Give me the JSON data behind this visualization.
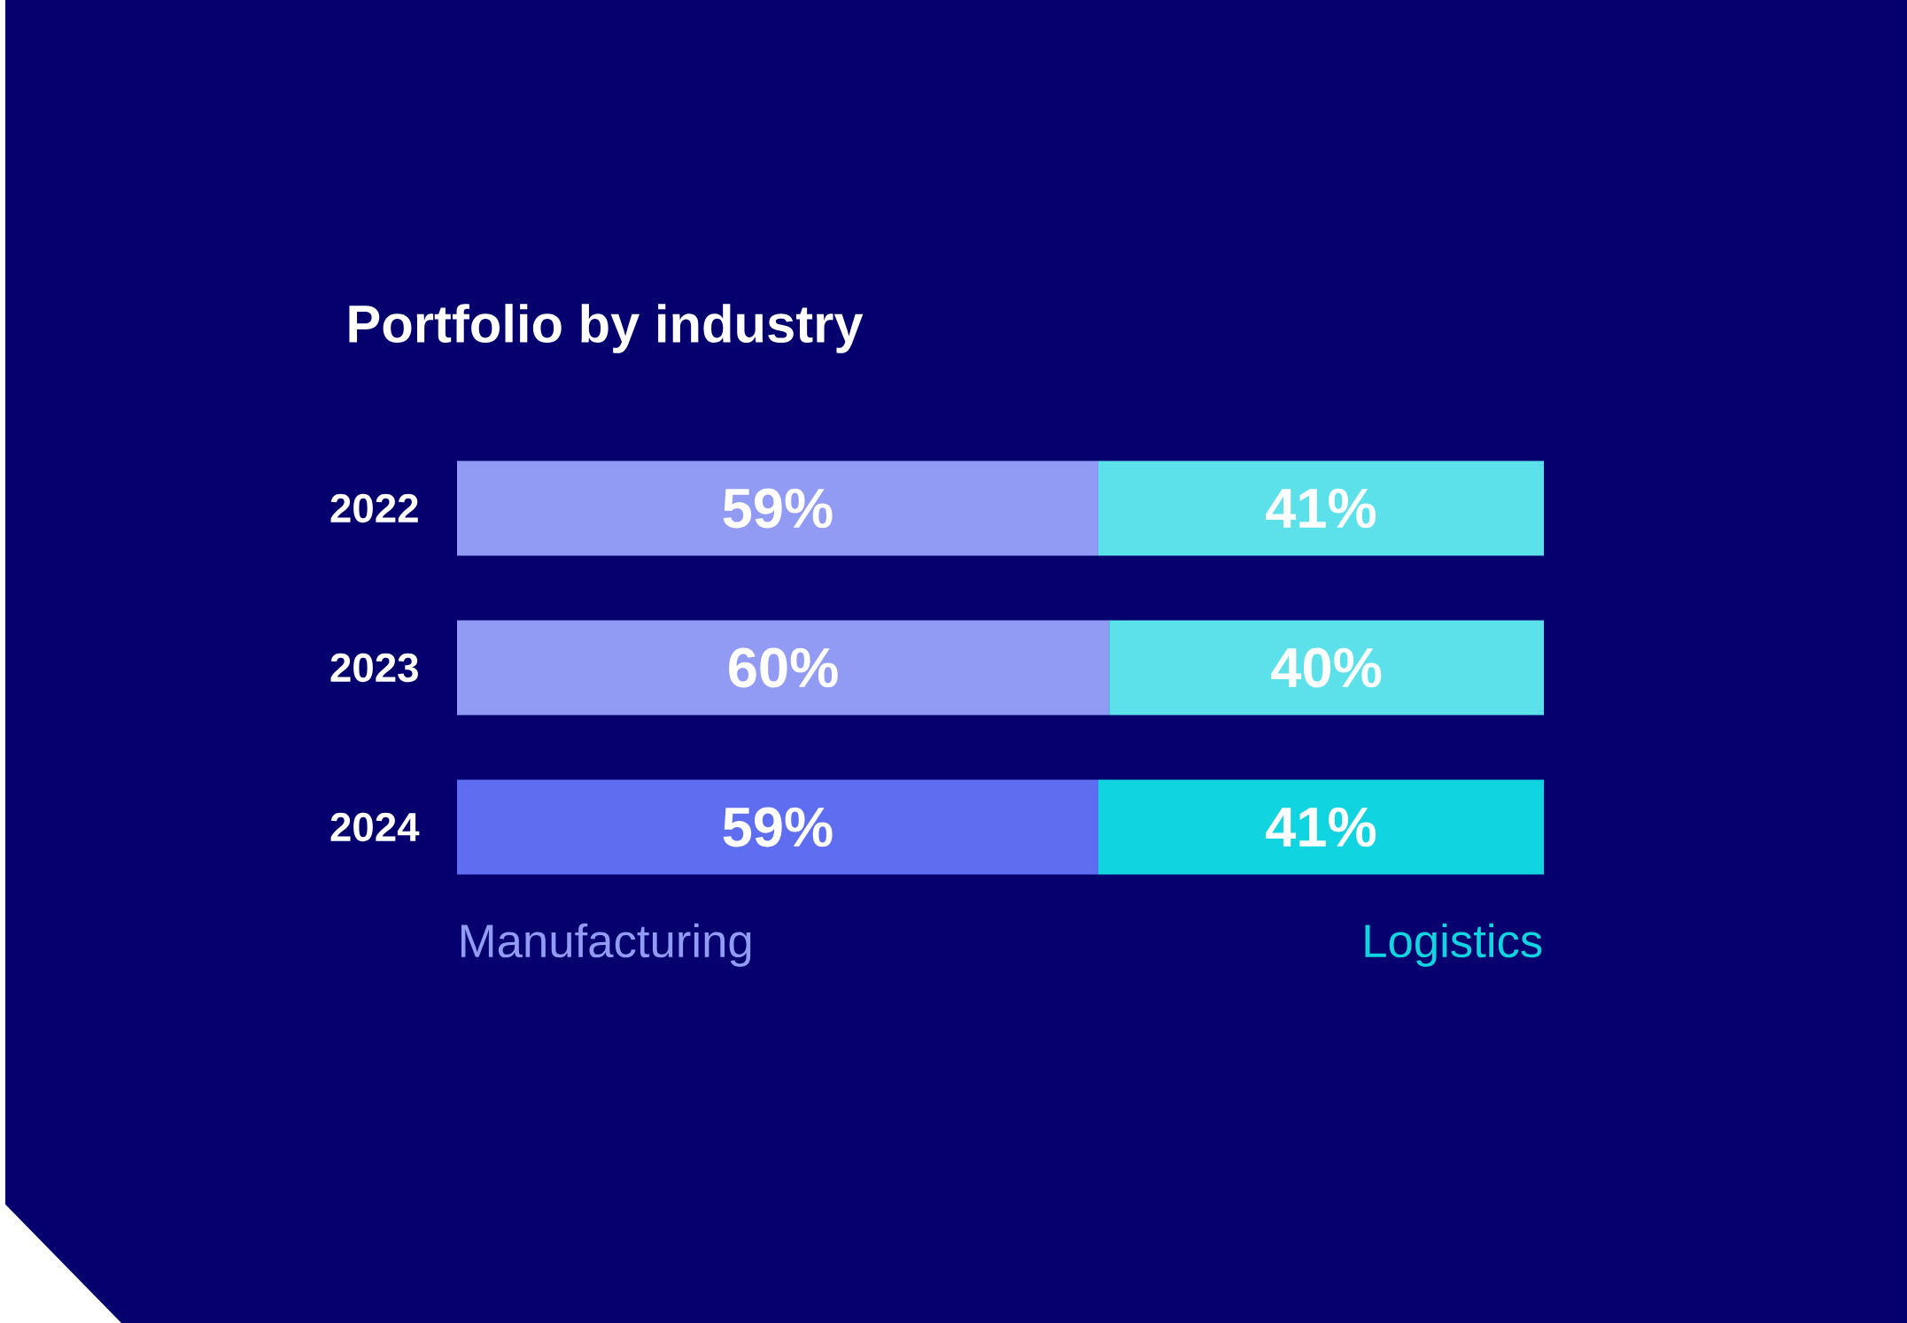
{
  "chart_data": {
    "type": "bar",
    "orientation": "horizontal",
    "stacked": true,
    "title": "Portfolio by industry",
    "categories": [
      "2022",
      "2023",
      "2024"
    ],
    "xlim": [
      0,
      100
    ],
    "legend": false,
    "series": [
      {
        "name": "Manufacturing",
        "color": "#929bf4",
        "colors": [
          "#929bf4",
          "#929bf4",
          "#5f6ef0"
        ],
        "values": [
          59,
          60,
          59
        ],
        "value_labels": [
          "59%",
          "60%",
          "59%"
        ]
      },
      {
        "name": "Logistics",
        "color": "#10d4e0",
        "colors": [
          "#5ce1ea",
          "#5ce1ea",
          "#10d4e0"
        ],
        "values": [
          41,
          40,
          41
        ],
        "value_labels": [
          "41%",
          "40%",
          "41%"
        ]
      }
    ]
  }
}
